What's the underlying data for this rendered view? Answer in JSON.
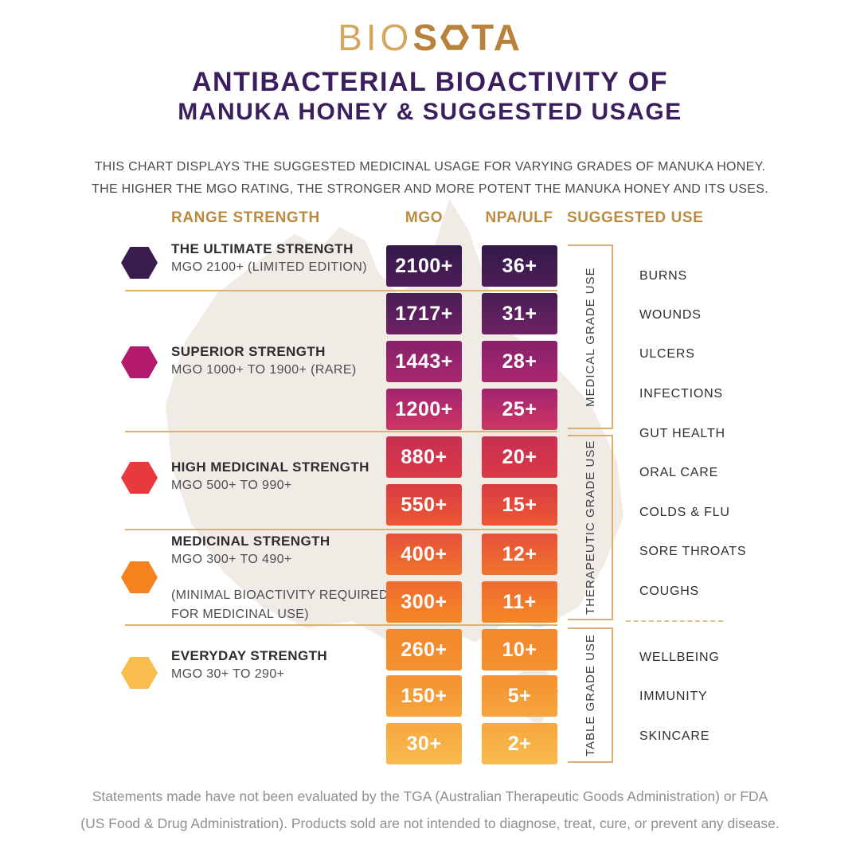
{
  "logo": {
    "light": "BIO",
    "bold_s": "S",
    "bold_ta": "TA",
    "gold_light": "#d4a75f",
    "gold_dark": "#b9823b"
  },
  "title": {
    "line1": "ANTIBACTERIAL BIOACTIVITY OF",
    "line2": "MANUKA HONEY & SUGGESTED USAGE",
    "color": "#3b1e5e"
  },
  "intro": {
    "line1": "THIS CHART DISPLAYS THE SUGGESTED MEDICINAL USAGE FOR VARYING GRADES OF MANUKA HONEY.",
    "line2": "THE HIGHER THE MGO RATING, THE STRONGER AND MORE POTENT THE MANUKA HONEY AND ITS USES."
  },
  "columns": {
    "range_strength": "RANGE STRENGTH",
    "mgo": "MGO",
    "npa_ulf": "NPA/ULF",
    "suggested_use": "SUGGESTED USE",
    "header_color": "#bb8a3e"
  },
  "sections": [
    {
      "name": "ultimate",
      "hex_color": "#3a1d4e",
      "title": "THE ULTIMATE STRENGTH",
      "subtitle": "MGO 2100+ (LIMITED EDITION)",
      "rows": [
        {
          "mgo": "2100+",
          "npa": "36+",
          "top": "#32194a",
          "bottom": "#4d1e59"
        }
      ]
    },
    {
      "name": "superior",
      "hex_color": "#b31a6e",
      "title": "SUPERIOR STRENGTH",
      "subtitle": "MGO 1000+ TO 1900+ (RARE)",
      "rows": [
        {
          "mgo": "1717+",
          "npa": "31+",
          "top": "#481c55",
          "bottom": "#6f2266"
        },
        {
          "mgo": "1443+",
          "npa": "28+",
          "top": "#85226a",
          "bottom": "#aa2670"
        },
        {
          "mgo": "1200+",
          "npa": "25+",
          "top": "#a1246f",
          "bottom": "#d03564"
        }
      ]
    },
    {
      "name": "high-medicinal",
      "hex_color": "#e8393c",
      "title": "HIGH MEDICINAL STRENGTH",
      "subtitle": "MGO 500+ TO 990+",
      "rows": [
        {
          "mgo": "880+",
          "npa": "20+",
          "top": "#c72f53",
          "bottom": "#da3a45"
        },
        {
          "mgo": "550+",
          "npa": "15+",
          "top": "#d83c43",
          "bottom": "#eb5834"
        }
      ]
    },
    {
      "name": "medicinal",
      "hex_color": "#f5821f",
      "title": "MEDICINAL STRENGTH",
      "subtitle": "MGO 300+ TO 490+",
      "note": "(MINIMAL BIOACTIVITY REQUIRED FOR MEDICINAL USE)",
      "rows": [
        {
          "mgo": "400+",
          "npa": "12+",
          "top": "#e5503a",
          "bottom": "#f0742b"
        },
        {
          "mgo": "300+",
          "npa": "11+",
          "top": "#ee6a2f",
          "bottom": "#f58827"
        }
      ]
    },
    {
      "name": "everyday",
      "hex_color": "#f9bd4d",
      "title": "EVERYDAY STRENGTH",
      "subtitle": "MGO 30+ TO 290+",
      "rows": [
        {
          "mgo": "260+",
          "npa": "10+",
          "top": "#f3872c",
          "bottom": "#f49130"
        },
        {
          "mgo": "150+",
          "npa": "5+",
          "top": "#f4922f",
          "bottom": "#f6a43d"
        },
        {
          "mgo": "30+",
          "npa": "2+",
          "top": "#f6a83f",
          "bottom": "#f8ba4f"
        }
      ]
    }
  ],
  "grades": [
    {
      "label": "MEDICAL GRADE USE",
      "uses": [
        "BURNS",
        "WOUNDS",
        "ULCERS",
        "INFECTIONS"
      ]
    },
    {
      "label": "THERAPEUTIC GRADE USE",
      "uses": [
        "GUT HEALTH",
        "ORAL CARE",
        "COLDS & FLU",
        "SORE THROATS",
        "COUGHS"
      ]
    },
    {
      "label": "TABLE GRADE USE",
      "uses": [
        "WELLBEING",
        "IMMUNITY",
        "SKINCARE"
      ]
    }
  ],
  "footer": {
    "line1": "Statements made have not been evaluated by the TGA (Australian Therapeutic Goods Administration) or FDA",
    "line2": "(US Food & Drug Administration). Products sold are not intended to diagnose, treat, cure, or prevent any disease."
  },
  "chart_data": {
    "type": "table",
    "title": "ANTIBACTERIAL BIOACTIVITY OF MANUKA HONEY & SUGGESTED USAGE",
    "columns": [
      "RANGE STRENGTH",
      "MGO",
      "NPA/ULF",
      "GRADE USE"
    ],
    "rows": [
      [
        "THE ULTIMATE STRENGTH MGO 2100+ (LIMITED EDITION)",
        "2100+",
        "36+",
        "MEDICAL GRADE USE"
      ],
      [
        "SUPERIOR STRENGTH MGO 1000+ TO 1900+ (RARE)",
        "1717+",
        "31+",
        "MEDICAL GRADE USE"
      ],
      [
        "SUPERIOR STRENGTH MGO 1000+ TO 1900+ (RARE)",
        "1443+",
        "28+",
        "MEDICAL GRADE USE"
      ],
      [
        "SUPERIOR STRENGTH MGO 1000+ TO 1900+ (RARE)",
        "1200+",
        "25+",
        "MEDICAL GRADE USE"
      ],
      [
        "HIGH MEDICINAL STRENGTH MGO 500+ TO 990+",
        "880+",
        "20+",
        "THERAPEUTIC GRADE USE"
      ],
      [
        "HIGH MEDICINAL STRENGTH MGO 500+ TO 990+",
        "550+",
        "15+",
        "THERAPEUTIC GRADE USE"
      ],
      [
        "MEDICINAL STRENGTH MGO 300+ TO 490+ (MINIMAL BIOACTIVITY REQUIRED FOR MEDICINAL USE)",
        "400+",
        "12+",
        "THERAPEUTIC GRADE USE"
      ],
      [
        "MEDICINAL STRENGTH MGO 300+ TO 490+ (MINIMAL BIOACTIVITY REQUIRED FOR MEDICINAL USE)",
        "300+",
        "11+",
        "THERAPEUTIC GRADE USE"
      ],
      [
        "EVERYDAY STRENGTH MGO 30+ TO 290+",
        "260+",
        "10+",
        "TABLE GRADE USE"
      ],
      [
        "EVERYDAY STRENGTH MGO 30+ TO 290+",
        "150+",
        "5+",
        "TABLE GRADE USE"
      ],
      [
        "EVERYDAY STRENGTH MGO 30+ TO 290+",
        "30+",
        "2+",
        "TABLE GRADE USE"
      ]
    ],
    "suggested_uses": {
      "MEDICAL GRADE USE": [
        "BURNS",
        "WOUNDS",
        "ULCERS",
        "INFECTIONS"
      ],
      "THERAPEUTIC GRADE USE": [
        "GUT HEALTH",
        "ORAL CARE",
        "COLDS & FLU",
        "SORE THROATS",
        "COUGHS"
      ],
      "TABLE GRADE USE": [
        "WELLBEING",
        "IMMUNITY",
        "SKINCARE"
      ]
    }
  }
}
